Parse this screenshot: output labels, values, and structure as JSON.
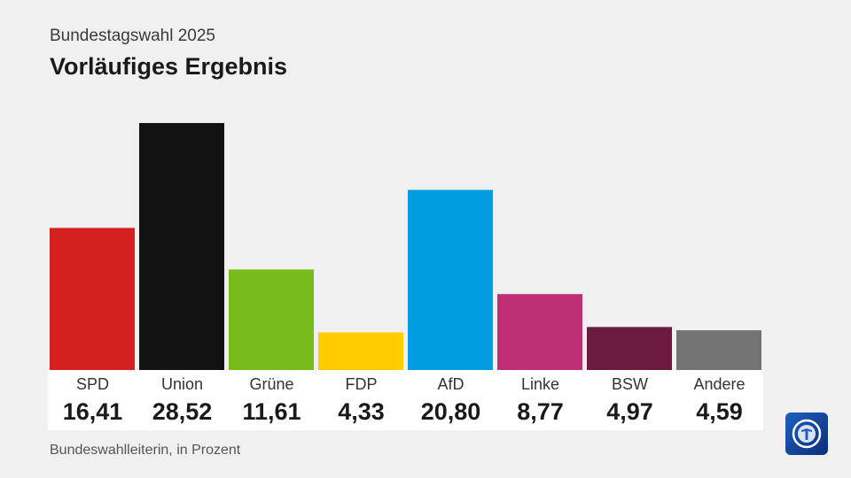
{
  "header": {
    "subtitle": "Bundestagswahl 2025",
    "title": "Vorläufiges Ergebnis"
  },
  "footer": {
    "source": "Bundeswahlleiterin, in Prozent"
  },
  "logo": {
    "icon": "tagesschau-logo-icon"
  },
  "chart_data": {
    "type": "bar",
    "subtitle": "Bundestagswahl 2025",
    "title": "Vorläufiges Ergebnis",
    "categories": [
      "SPD",
      "Union",
      "Grüne",
      "FDP",
      "AfD",
      "Linke",
      "BSW",
      "Andere"
    ],
    "values": [
      16.41,
      28.52,
      11.61,
      4.33,
      20.8,
      8.77,
      4.97,
      4.59
    ],
    "value_labels": [
      "16,41",
      "28,52",
      "11,61",
      "4,33",
      "20,80",
      "8,77",
      "4,97",
      "4,59"
    ],
    "colors": [
      "#d52020",
      "#121212",
      "#78bc1c",
      "#ffcc00",
      "#009ee0",
      "#be3075",
      "#6b1a40",
      "#737373"
    ],
    "ylim": [
      0,
      28.52
    ],
    "grid": false,
    "legend": "none",
    "source": "Bundeswahlleiterin, in Prozent"
  }
}
